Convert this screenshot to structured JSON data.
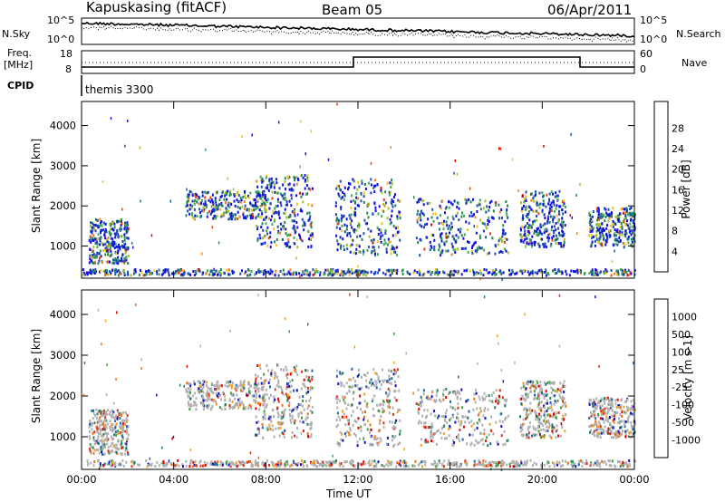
{
  "header": {
    "station": "Kapuskasing (fitACF)",
    "beam": "Beam 05",
    "date": "06/Apr/2011"
  },
  "left_labels": {
    "nsky": "N.Sky",
    "freq": "Freq.",
    "freq_unit": "[MHz]",
    "cpid": "CPID"
  },
  "right_labels": {
    "nsearch": "N.Search",
    "nave": "Nave"
  },
  "noise_axis": {
    "left_ticks": [
      "10^5",
      "10^0"
    ],
    "right_ticks": [
      "10^5",
      "10^0"
    ]
  },
  "freq_axis": {
    "left_ticks": [
      "18",
      "8"
    ],
    "right_ticks": [
      "60",
      "0"
    ]
  },
  "cpid_value": "themis 3300",
  "colors": {
    "power_scale": [
      "#1010e0",
      "#2050b0",
      "#208850",
      "#40a858",
      "#a0c030",
      "#f0c020",
      "#f08020",
      "#e84010",
      "#e00000"
    ],
    "velocity_scale": [
      "#1010c0",
      "#2060b0",
      "#208060",
      "#40a040",
      "#b0b0b0",
      "#b0b0b0",
      "#f0a020",
      "#f07010",
      "#e03010",
      "#e00000"
    ]
  },
  "chart_data": [
    {
      "type": "heatmap",
      "name": "power",
      "ylabel": "Slant Range [km]",
      "yticks": [
        1000,
        2000,
        3000,
        4000
      ],
      "ylim": [
        200,
        4600
      ],
      "xlim": [
        0,
        24
      ],
      "xticks": [
        "00:00",
        "04:00",
        "08:00",
        "12:00",
        "16:00",
        "20:00",
        "00:00"
      ],
      "colorbar": {
        "label": "Power [dB]",
        "ticks": [
          "4",
          "8",
          "12",
          "16",
          "20",
          "24",
          "28"
        ]
      },
      "echo_regions": [
        {
          "t0": 0.3,
          "t1": 2.0,
          "r0": 600,
          "r1": 1700
        },
        {
          "t0": 4.5,
          "t1": 8.0,
          "r0": 1700,
          "r1": 2400
        },
        {
          "t0": 7.5,
          "t1": 10.0,
          "r0": 1000,
          "r1": 2800
        },
        {
          "t0": 11.0,
          "t1": 13.8,
          "r0": 800,
          "r1": 2700
        },
        {
          "t0": 14.5,
          "t1": 18.5,
          "r0": 800,
          "r1": 2200
        },
        {
          "t0": 19.0,
          "t1": 21.0,
          "r0": 1000,
          "r1": 2400
        },
        {
          "t0": 22.0,
          "t1": 24.0,
          "r0": 1000,
          "r1": 2000
        },
        {
          "t0": 0.0,
          "t1": 24.0,
          "r0": 300,
          "r1": 450
        }
      ]
    },
    {
      "type": "heatmap",
      "name": "velocity",
      "ylabel": "Slant Range [km]",
      "xlabel": "Time UT",
      "yticks": [
        1000,
        2000,
        3000,
        4000
      ],
      "ylim": [
        200,
        4600
      ],
      "xlim": [
        0,
        24
      ],
      "xticks": [
        "00:00",
        "04:00",
        "08:00",
        "12:00",
        "16:00",
        "20:00",
        "00:00"
      ],
      "colorbar": {
        "label": "Velocity [m s-1]",
        "ticks": [
          "1000",
          "500",
          "100",
          "25",
          "-25",
          "-100",
          "-500",
          "-1000"
        ]
      },
      "echo_regions": [
        {
          "t0": 0.3,
          "t1": 2.0,
          "r0": 600,
          "r1": 1700
        },
        {
          "t0": 4.5,
          "t1": 8.0,
          "r0": 1700,
          "r1": 2400
        },
        {
          "t0": 7.5,
          "t1": 10.0,
          "r0": 1000,
          "r1": 2800
        },
        {
          "t0": 11.0,
          "t1": 13.8,
          "r0": 800,
          "r1": 2700
        },
        {
          "t0": 14.5,
          "t1": 18.5,
          "r0": 800,
          "r1": 2200
        },
        {
          "t0": 19.0,
          "t1": 21.0,
          "r0": 1000,
          "r1": 2400
        },
        {
          "t0": 22.0,
          "t1": 24.0,
          "r0": 1000,
          "r1": 2000
        },
        {
          "t0": 0.0,
          "t1": 24.0,
          "r0": 300,
          "r1": 450
        }
      ]
    }
  ]
}
